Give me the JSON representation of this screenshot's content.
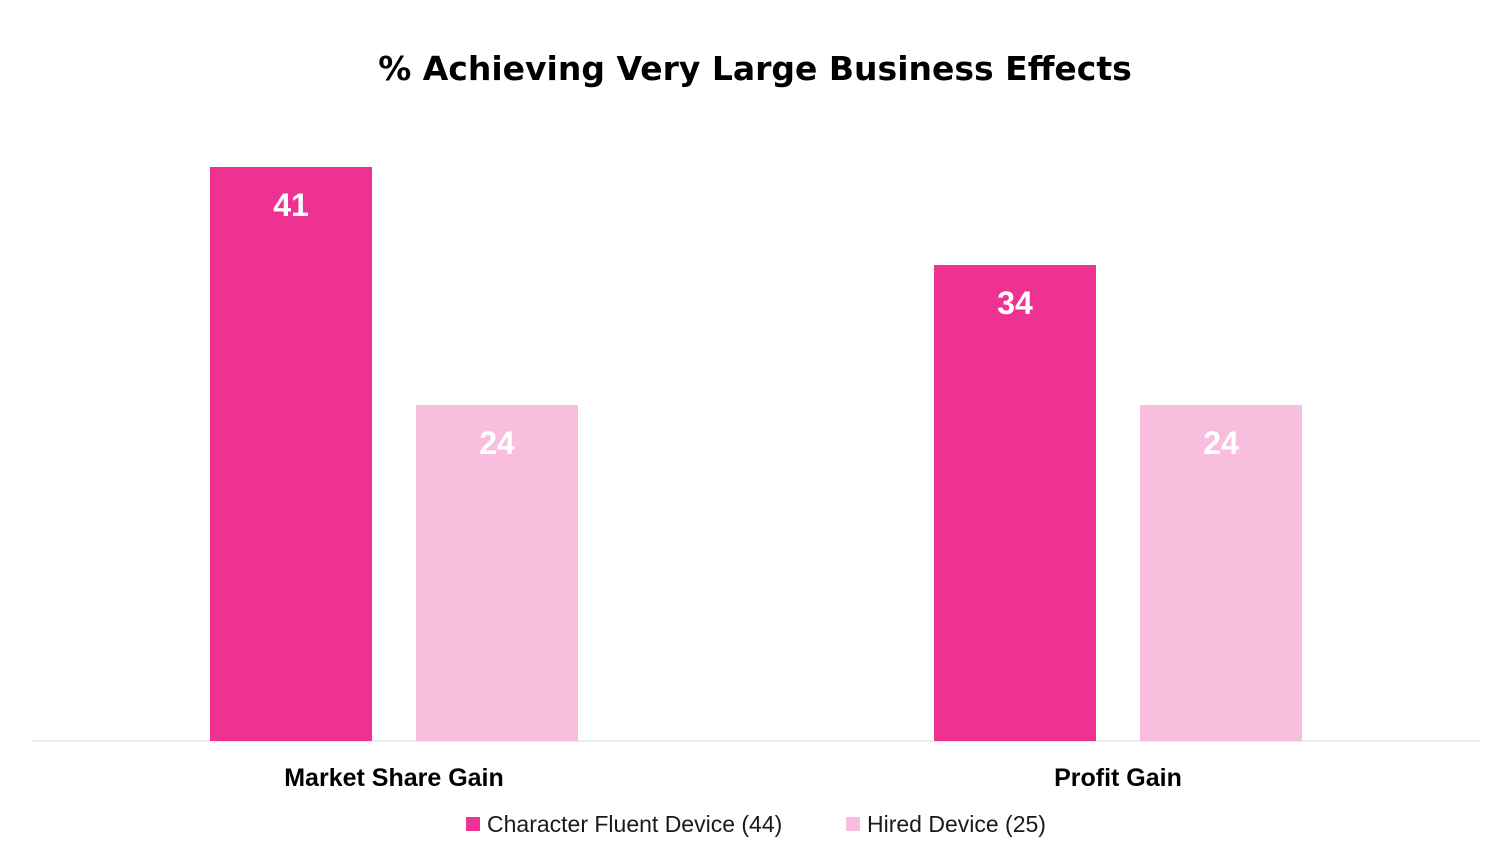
{
  "chart_data": {
    "type": "bar",
    "title": "% Achieving Very Large Business Effects",
    "categories": [
      "Market Share Gain",
      "Profit Gain"
    ],
    "series": [
      {
        "name": "Character Fluent Device (44)",
        "values": [
          41,
          34
        ],
        "color": "#ee3292"
      },
      {
        "name": "Hired Device (25)",
        "values": [
          24,
          24
        ],
        "color": "#f9bedd"
      }
    ],
    "ylim": [
      0,
      41
    ],
    "grid": false,
    "legend_position": "bottom",
    "data_labels": true
  }
}
